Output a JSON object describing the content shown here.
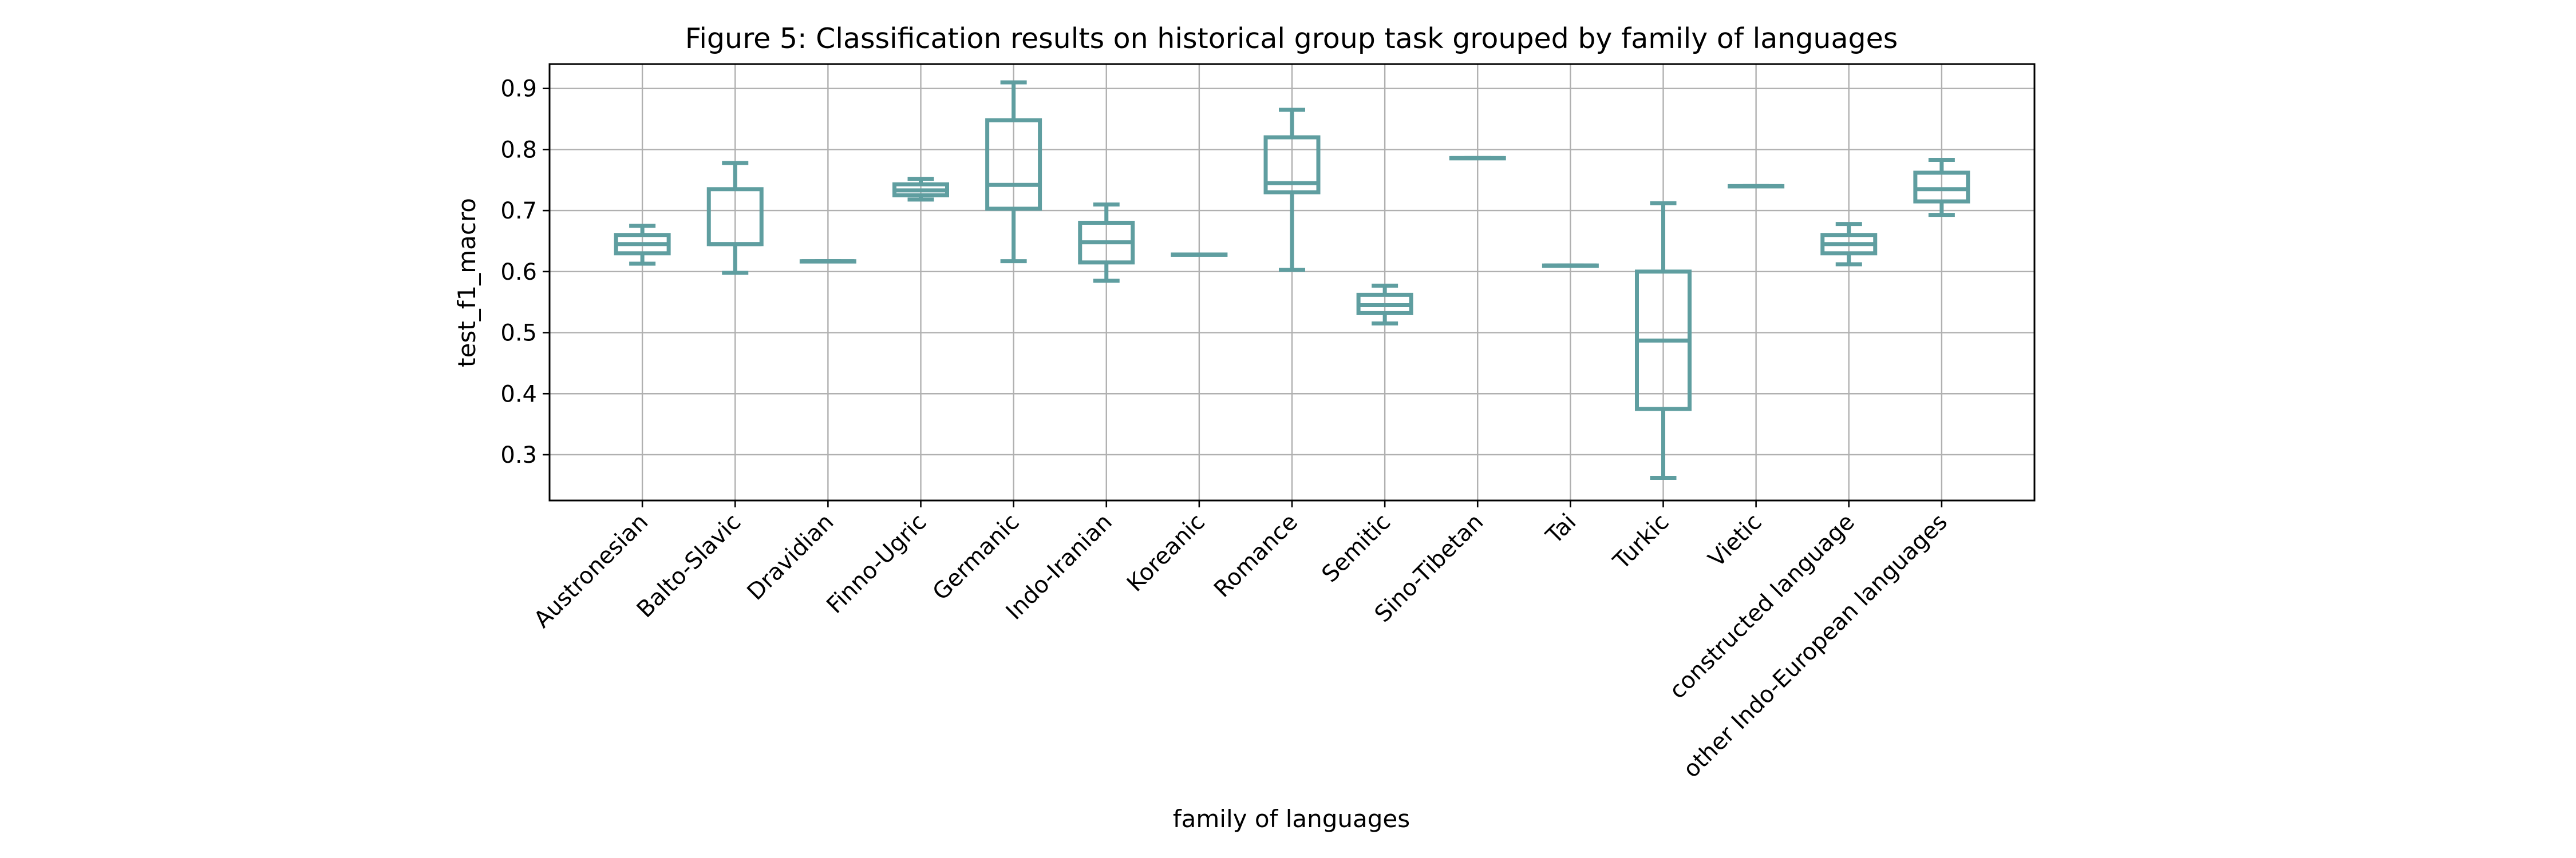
{
  "chart_data": {
    "type": "box",
    "title": "Figure 5: Classification results on historical group task grouped by family of languages",
    "xlabel": "family of languages",
    "ylabel": "test_f1_macro",
    "ylim": [
      0.225,
      0.94
    ],
    "yticks": [
      "0.3",
      "0.4",
      "0.5",
      "0.6",
      "0.7",
      "0.8",
      "0.9"
    ],
    "ytick_values": [
      0.3,
      0.4,
      0.5,
      0.6,
      0.7,
      0.8,
      0.9
    ],
    "grid": true,
    "legend": "none",
    "color": "#5f9ea0",
    "categories": [
      "Austronesian",
      "Balto-Slavic",
      "Dravidian",
      "Finno-Ugric",
      "Germanic",
      "Indo-Iranian",
      "Koreanic",
      "Romance",
      "Semitic",
      "Sino-Tibetan",
      "Tai",
      "Turkic",
      "Vietic",
      "constructed language",
      "other Indo-European languages"
    ],
    "boxes": [
      {
        "whislo": 0.613,
        "q1": 0.63,
        "med": 0.645,
        "q3": 0.66,
        "whishi": 0.675
      },
      {
        "whislo": 0.598,
        "q1": 0.645,
        "med": 0.645,
        "q3": 0.735,
        "whishi": 0.778
      },
      {
        "whislo": 0.617,
        "q1": 0.617,
        "med": 0.617,
        "q3": 0.617,
        "whishi": 0.617
      },
      {
        "whislo": 0.718,
        "q1": 0.725,
        "med": 0.733,
        "q3": 0.743,
        "whishi": 0.752
      },
      {
        "whislo": 0.617,
        "q1": 0.703,
        "med": 0.742,
        "q3": 0.848,
        "whishi": 0.91
      },
      {
        "whislo": 0.585,
        "q1": 0.615,
        "med": 0.648,
        "q3": 0.68,
        "whishi": 0.71
      },
      {
        "whislo": 0.628,
        "q1": 0.628,
        "med": 0.628,
        "q3": 0.628,
        "whishi": 0.628
      },
      {
        "whislo": 0.603,
        "q1": 0.73,
        "med": 0.745,
        "q3": 0.82,
        "whishi": 0.865
      },
      {
        "whislo": 0.515,
        "q1": 0.532,
        "med": 0.545,
        "q3": 0.562,
        "whishi": 0.577
      },
      {
        "whislo": 0.786,
        "q1": 0.786,
        "med": 0.786,
        "q3": 0.786,
        "whishi": 0.786
      },
      {
        "whislo": 0.61,
        "q1": 0.61,
        "med": 0.61,
        "q3": 0.61,
        "whishi": 0.61
      },
      {
        "whislo": 0.262,
        "q1": 0.375,
        "med": 0.487,
        "q3": 0.6,
        "whishi": 0.712
      },
      {
        "whislo": 0.74,
        "q1": 0.74,
        "med": 0.74,
        "q3": 0.74,
        "whishi": 0.74
      },
      {
        "whislo": 0.612,
        "q1": 0.63,
        "med": 0.645,
        "q3": 0.66,
        "whishi": 0.678
      },
      {
        "whislo": 0.693,
        "q1": 0.715,
        "med": 0.735,
        "q3": 0.762,
        "whishi": 0.783
      }
    ]
  }
}
